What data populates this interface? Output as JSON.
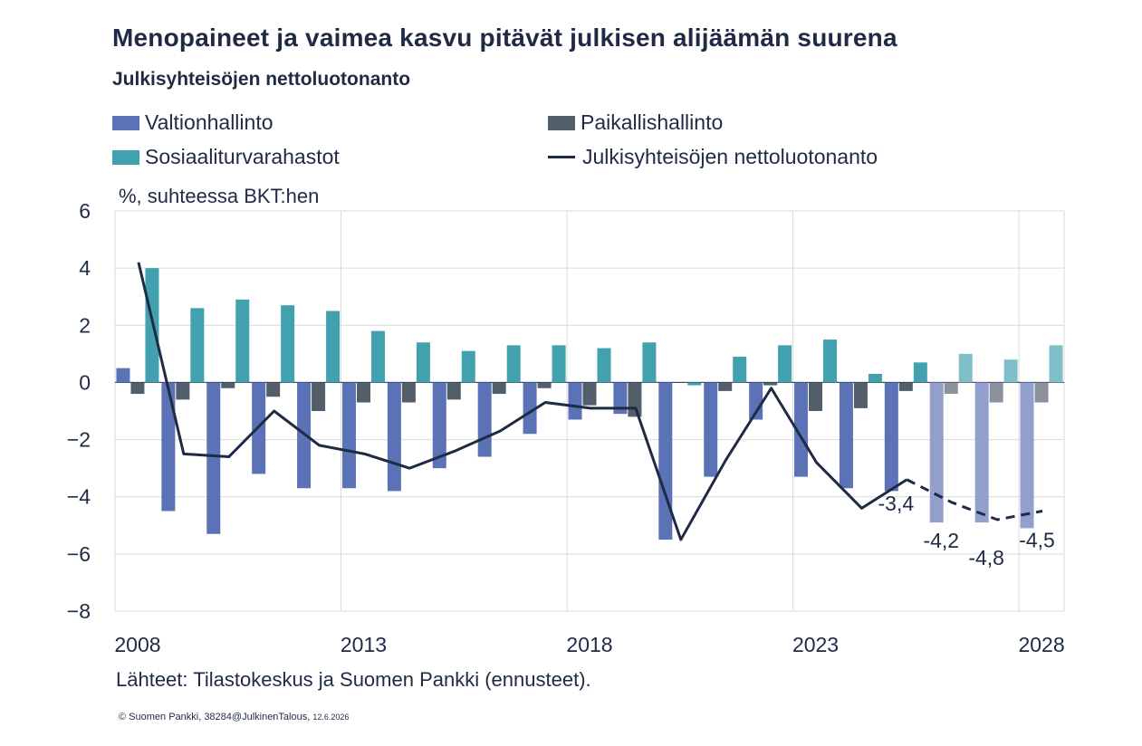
{
  "title": "Menopaineet ja vaimea kasvu pitävät julkisen alijäämän suurena",
  "subtitle": "Julkisyhteisöjen nettoluotonanto",
  "unit_label": "%, suhteessa BKT:hen",
  "source": "Lähteet: Tilastokeskus ja Suomen Pankki (ennusteet).",
  "copyright": "© Suomen Pankki, 38284@JulkinenTalous,",
  "copyright_date": "12.6.2026",
  "colors": {
    "valtio": "#5b72b6",
    "valtio_forecast": "#939fcd",
    "paikallis": "#535e6b",
    "paikallis_forecast": "#8c929b",
    "sosiaali": "#42a1ae",
    "sosiaali_forecast": "#80bfca",
    "line": "#1f2a44",
    "grid": "#d9d9d9",
    "text": "#1f2a44"
  },
  "chart_data": {
    "type": "bar",
    "x": [
      2008,
      2009,
      2010,
      2011,
      2012,
      2013,
      2014,
      2015,
      2016,
      2017,
      2018,
      2019,
      2020,
      2021,
      2022,
      2023,
      2024,
      2025,
      2026,
      2027,
      2028
    ],
    "x_tick_labels": [
      "2008",
      "2013",
      "2018",
      "2023",
      "2028"
    ],
    "forecast_from": 2026,
    "ylim": [
      -8,
      6
    ],
    "y_ticks": [
      -8,
      -6,
      -4,
      -2,
      0,
      2,
      4,
      6
    ],
    "y_tick_labels": [
      "−8",
      "−6",
      "−4",
      "−2",
      "0",
      "2",
      "4",
      "6"
    ],
    "grid": true,
    "legend_position": "top",
    "series": [
      {
        "name": "Valtionhallinto",
        "kind": "bar",
        "values": [
          0.5,
          -4.5,
          -5.3,
          -3.2,
          -3.7,
          -3.7,
          -3.8,
          -3.0,
          -2.6,
          -1.8,
          -1.3,
          -1.1,
          -5.5,
          -3.3,
          -1.3,
          -3.3,
          -3.7,
          -3.8,
          -4.9,
          -4.9,
          -5.1
        ]
      },
      {
        "name": "Paikallishallinto",
        "kind": "bar",
        "values": [
          -0.4,
          -0.6,
          -0.2,
          -0.5,
          -1.0,
          -0.7,
          -0.7,
          -0.6,
          -0.4,
          -0.2,
          -0.8,
          -1.2,
          0.0,
          -0.3,
          -0.1,
          -1.0,
          -0.9,
          -0.3,
          -0.4,
          -0.7,
          -0.7
        ]
      },
      {
        "name": "Sosiaaliturvarahastot",
        "kind": "bar",
        "values": [
          4.0,
          2.6,
          2.9,
          2.7,
          2.5,
          1.8,
          1.4,
          1.1,
          1.3,
          1.3,
          1.2,
          1.4,
          -0.1,
          0.9,
          1.3,
          1.5,
          0.3,
          0.7,
          1.0,
          0.8,
          1.3
        ]
      },
      {
        "name": "Julkisyhteisöjen nettoluotonanto",
        "kind": "line",
        "values": [
          4.2,
          -2.5,
          -2.6,
          -1.0,
          -2.2,
          -2.5,
          -3.0,
          -2.4,
          -1.7,
          -0.7,
          -0.9,
          -0.9,
          -5.5,
          -2.7,
          -0.2,
          -2.8,
          -4.4,
          -3.4,
          -4.2,
          -4.8,
          -4.5
        ]
      }
    ],
    "annotations": [
      {
        "year": 2025,
        "text": "-3,4"
      },
      {
        "year": 2026,
        "text": "-4,2"
      },
      {
        "year": 2027,
        "text": "-4,8"
      },
      {
        "year": 2028,
        "text": "-4,5"
      }
    ]
  }
}
